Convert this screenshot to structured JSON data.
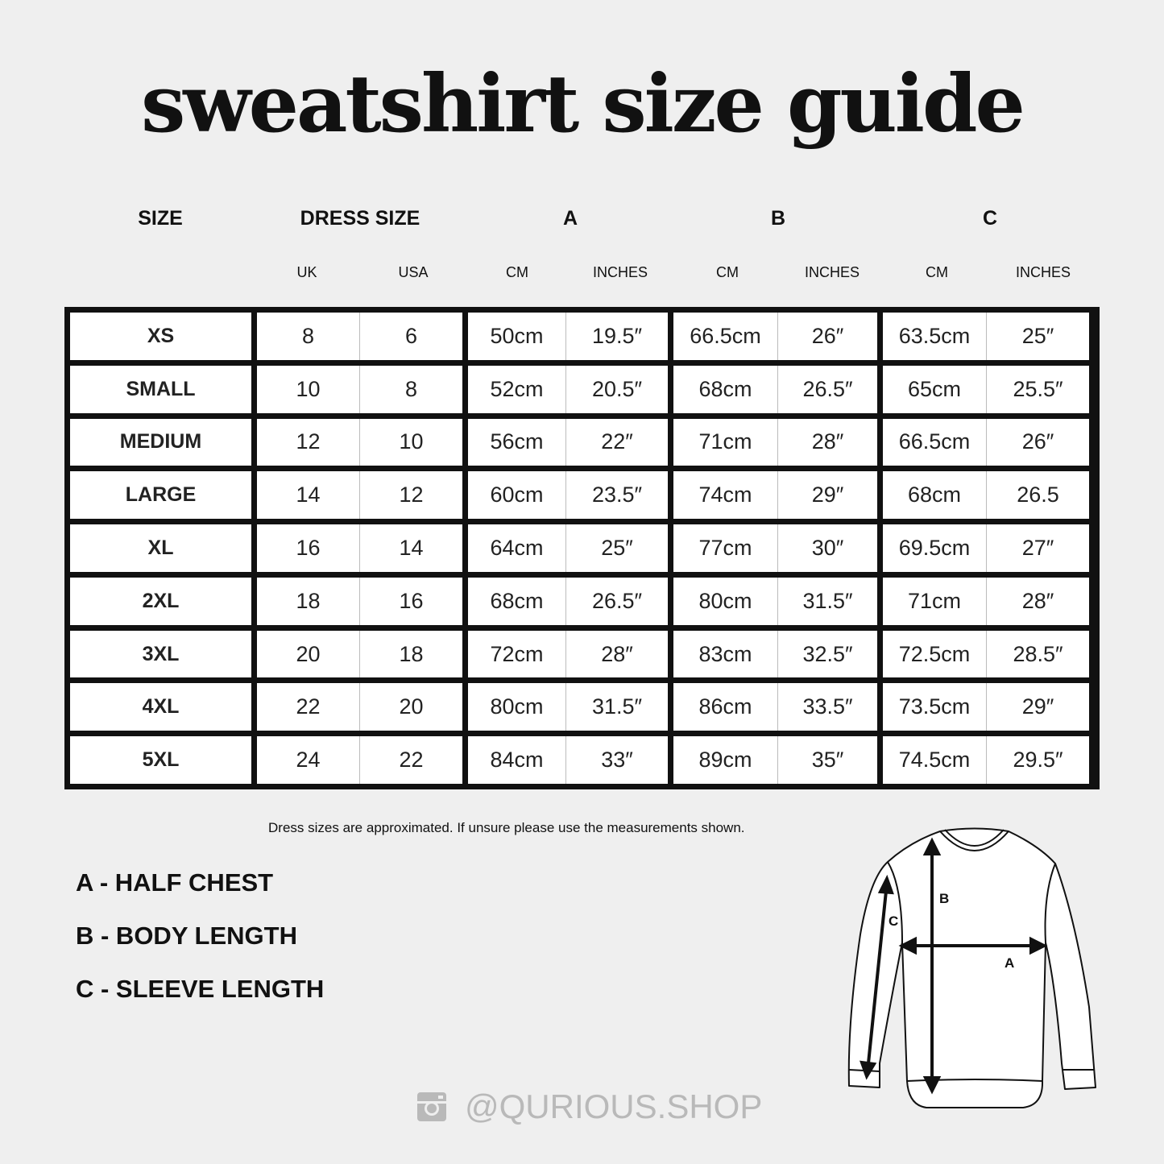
{
  "title": "sweatshirt size guide",
  "headers": {
    "size": "SIZE",
    "dress_size": "DRESS SIZE",
    "a": "A",
    "b": "B",
    "c": "C"
  },
  "subheaders": {
    "uk": "UK",
    "usa": "USA",
    "a_cm": "CM",
    "a_in": "INCHES",
    "b_cm": "CM",
    "b_in": "INCHES",
    "c_cm": "CM",
    "c_in": "INCHES"
  },
  "rows": [
    [
      "XS",
      "8",
      "6",
      "50cm",
      "19.5″",
      "66.5cm",
      "26″",
      "63.5cm",
      "25″"
    ],
    [
      "SMALL",
      "10",
      "8",
      "52cm",
      "20.5″",
      "68cm",
      "26.5″",
      "65cm",
      "25.5″"
    ],
    [
      "MEDIUM",
      "12",
      "10",
      "56cm",
      "22″",
      "71cm",
      "28″",
      "66.5cm",
      "26″"
    ],
    [
      "LARGE",
      "14",
      "12",
      "60cm",
      "23.5″",
      "74cm",
      "29″",
      "68cm",
      "26.5"
    ],
    [
      "XL",
      "16",
      "14",
      "64cm",
      "25″",
      "77cm",
      "30″",
      "69.5cm",
      "27″"
    ],
    [
      "2XL",
      "18",
      "16",
      "68cm",
      "26.5″",
      "80cm",
      "31.5″",
      "71cm",
      "28″"
    ],
    [
      "3XL",
      "20",
      "18",
      "72cm",
      "28″",
      "83cm",
      "32.5″",
      "72.5cm",
      "28.5″"
    ],
    [
      "4XL",
      "22",
      "20",
      "80cm",
      "31.5″",
      "86cm",
      "33.5″",
      "73.5cm",
      "29″"
    ],
    [
      "5XL",
      "24",
      "22",
      "84cm",
      "33″",
      "89cm",
      "35″",
      "74.5cm",
      "29.5″"
    ]
  ],
  "note": "Dress sizes are approximated. If unsure please use the measurements shown.",
  "legend": [
    "A - HALF CHEST",
    "B - BODY LENGTH",
    "C - SLEEVE LENGTH"
  ],
  "diagram": {
    "a": "A",
    "b": "B",
    "c": "C"
  },
  "social": {
    "icon": "instagram-icon",
    "handle": "@QURIOUS.SHOP"
  }
}
